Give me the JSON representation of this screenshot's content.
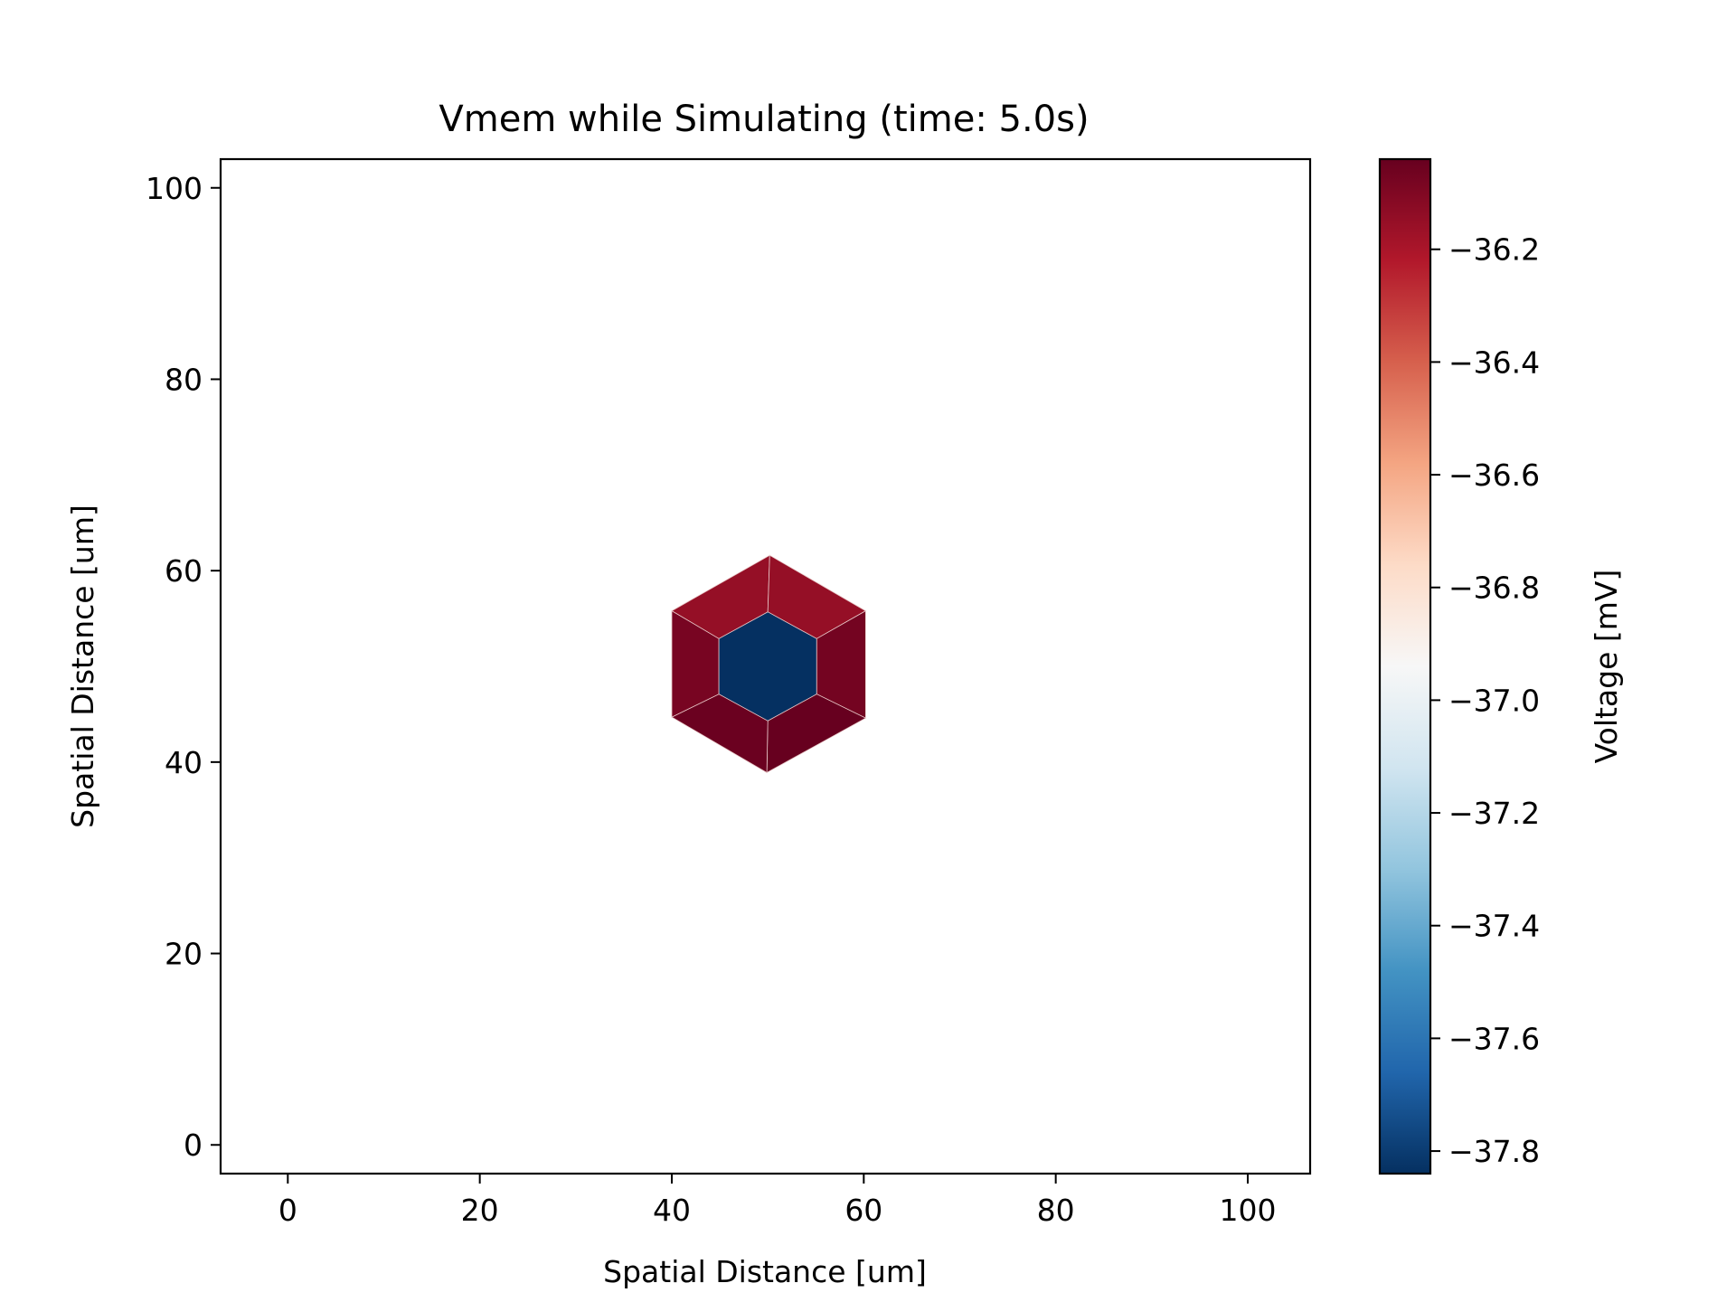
{
  "chart_data": {
    "type": "heatmap",
    "title": "Vmem while Simulating (time: 5.0s)",
    "xlabel": "Spatial Distance [um]",
    "ylabel": "Spatial Distance [um]",
    "xlim": [
      -7,
      106.5
    ],
    "ylim": [
      -3,
      103
    ],
    "xticks": [
      0,
      20,
      40,
      60,
      80,
      100
    ],
    "yticks": [
      0,
      20,
      40,
      60,
      80,
      100
    ],
    "grid": false,
    "cells": [
      {
        "name": "center",
        "vmem": -37.85,
        "polygon": [
          [
            50,
            55.7
          ],
          [
            55.1,
            52.9
          ],
          [
            55.1,
            47.1
          ],
          [
            50,
            44.3
          ],
          [
            44.9,
            47.1
          ],
          [
            44.9,
            52.9
          ]
        ]
      },
      {
        "name": "top-left",
        "vmem": -36.15,
        "polygon": [
          [
            40,
            55.8
          ],
          [
            50.2,
            61.6
          ],
          [
            50,
            55.7
          ],
          [
            44.9,
            52.9
          ]
        ]
      },
      {
        "name": "top-right",
        "vmem": -36.15,
        "polygon": [
          [
            50.2,
            61.6
          ],
          [
            60.2,
            55.8
          ],
          [
            55.1,
            52.9
          ],
          [
            50,
            55.7
          ]
        ]
      },
      {
        "name": "right",
        "vmem": -36.07,
        "polygon": [
          [
            60.2,
            55.8
          ],
          [
            60.2,
            44.6
          ],
          [
            55.1,
            47.1
          ],
          [
            55.1,
            52.9
          ]
        ]
      },
      {
        "name": "bottom-right",
        "vmem": -36.03,
        "polygon": [
          [
            60.2,
            44.6
          ],
          [
            49.9,
            38.9
          ],
          [
            50,
            44.3
          ],
          [
            55.1,
            47.1
          ]
        ]
      },
      {
        "name": "bottom-left",
        "vmem": -36.05,
        "polygon": [
          [
            49.9,
            38.9
          ],
          [
            40,
            44.7
          ],
          [
            44.9,
            47.1
          ],
          [
            50,
            44.3
          ]
        ]
      },
      {
        "name": "left",
        "vmem": -36.08,
        "polygon": [
          [
            40,
            44.7
          ],
          [
            40,
            55.8
          ],
          [
            44.9,
            52.9
          ],
          [
            44.9,
            47.1
          ]
        ]
      }
    ],
    "colorbar": {
      "label": "Voltage [mV]",
      "colormap": "RdBu_r",
      "vmin": -37.84,
      "vmax": -36.04,
      "ticks": [
        -36.2,
        -36.4,
        -36.6,
        -36.8,
        -37.0,
        -37.2,
        -37.4,
        -37.6,
        -37.8
      ],
      "tick_labels": [
        "−36.2",
        "−36.4",
        "−36.6",
        "−36.8",
        "−37.0",
        "−37.2",
        "−37.4",
        "−37.6",
        "−37.8"
      ],
      "colors": [
        "#053061",
        "#2166ac",
        "#4393c3",
        "#92c5de",
        "#d1e5f0",
        "#f7f7f7",
        "#fddbc7",
        "#f4a582",
        "#d6604d",
        "#b2182b",
        "#67001f"
      ]
    }
  }
}
